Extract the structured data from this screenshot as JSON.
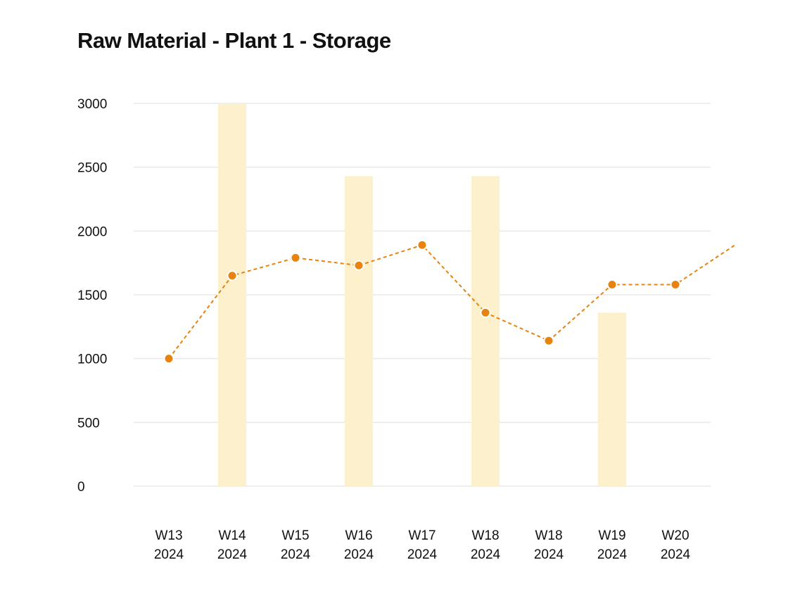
{
  "chart_data": {
    "type": "bar",
    "title": "Raw Material - Plant 1 - Storage",
    "xlabel": "",
    "ylabel": "",
    "ylim": [
      0,
      3000
    ],
    "yticks": [
      0,
      500,
      1000,
      1500,
      2000,
      2500,
      3000
    ],
    "yticks_labels": [
      "0",
      "500",
      "1000",
      "1500",
      "2000",
      "2500",
      "3000"
    ],
    "grid": true,
    "categories": [
      [
        "W13",
        "2024"
      ],
      [
        "W14",
        "2024"
      ],
      [
        "W15",
        "2024"
      ],
      [
        "W16",
        "2024"
      ],
      [
        "W17",
        "2024"
      ],
      [
        "W18",
        "2024"
      ],
      [
        "W18",
        "2024"
      ],
      [
        "W19",
        "2024"
      ],
      [
        "W20",
        "2024"
      ]
    ],
    "series": [
      {
        "name": "bars",
        "kind": "bar",
        "color": "#FDF0CC",
        "values": [
          0,
          3000,
          0,
          2430,
          0,
          2430,
          0,
          1360,
          0
        ]
      },
      {
        "name": "line",
        "kind": "line",
        "style": "dashed",
        "color": "#E8830F",
        "values": [
          1000,
          1650,
          1790,
          1730,
          1890,
          1360,
          1140,
          1580,
          1580
        ],
        "continues_beyond_last": 1910
      }
    ]
  }
}
